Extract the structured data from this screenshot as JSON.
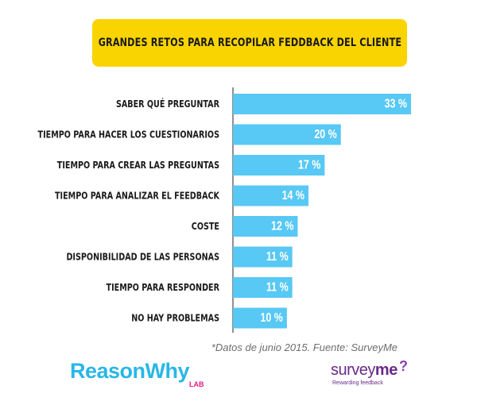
{
  "title": "GRANDES RETOS PARA RECOPILAR FEDDBACK DEL CLIENTE",
  "footnote": "*Datos de junio 2015. Fuente: SurveyMe",
  "logos": {
    "reasonwhy_main": "ReasonWhy",
    "reasonwhy_sub": "LAB",
    "surveyme_a": "survey",
    "surveyme_b": "me",
    "surveyme_tagline": "Rewarding feedback",
    "surveyme_mark": "?"
  },
  "colors": {
    "bar": "#58c8f5",
    "title_bg": "#f9d400",
    "axis": "#222222"
  },
  "chart_data": {
    "type": "bar",
    "orientation": "horizontal",
    "title": "GRANDES RETOS PARA RECOPILAR FEDDBACK DEL CLIENTE",
    "categories": [
      "SABER QUÉ PREGUNTAR",
      "TIEMPO PARA HACER LOS CUESTIONARIOS",
      "TIEMPO PARA CREAR LAS PREGUNTAS",
      "TIEMPO PARA ANALIZAR EL FEEDBACK",
      "COSTE",
      "DISPONIBILIDAD DE LAS PERSONAS",
      "TIEMPO PARA RESPONDER",
      "NO HAY PROBLEMAS"
    ],
    "values": [
      33,
      20,
      17,
      14,
      12,
      11,
      11,
      10
    ],
    "value_labels": [
      "33 %",
      "20 %",
      "17 %",
      "14 %",
      "12 %",
      "11 %",
      "11 %",
      "10 %"
    ],
    "xlim": [
      0,
      33
    ],
    "grid": false,
    "legend": "none"
  }
}
